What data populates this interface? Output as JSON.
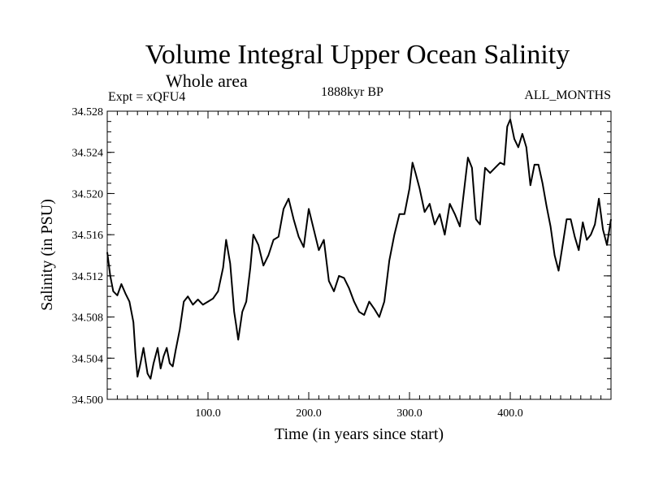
{
  "header": {
    "title": "Volume Integral Upper Ocean Salinity",
    "subtitle": "Whole area",
    "experiment": "Expt = xQFU4",
    "period": "1888kyr BP",
    "months": "ALL_MONTHS"
  },
  "chart_data": {
    "type": "line",
    "title": "Volume Integral Upper Ocean Salinity",
    "subtitle": "Whole area",
    "xlabel": "Time (in years since start)",
    "ylabel": "Salinity (in PSU)",
    "xlim": [
      0,
      500
    ],
    "ylim": [
      34.5,
      34.528
    ],
    "x_ticks": [
      100,
      200,
      300,
      400
    ],
    "x_tick_labels": [
      "100.0",
      "200.0",
      "300.0",
      "400.0"
    ],
    "y_ticks": [
      34.5,
      34.504,
      34.508,
      34.512,
      34.516,
      34.52,
      34.524,
      34.528
    ],
    "y_tick_labels": [
      "34.500",
      "34.504",
      "34.508",
      "34.512",
      "34.516",
      "34.520",
      "34.524",
      "34.528"
    ],
    "grid": false,
    "series": [
      {
        "name": "salinity",
        "color": "#000000",
        "x": [
          0,
          3,
          6,
          10,
          14,
          18,
          22,
          26,
          28,
          30,
          33,
          36,
          40,
          43,
          46,
          50,
          53,
          56,
          59,
          62,
          65,
          68,
          72,
          76,
          80,
          85,
          90,
          95,
          100,
          105,
          110,
          115,
          118,
          122,
          126,
          128,
          130,
          134,
          138,
          142,
          145,
          150,
          155,
          160,
          165,
          170,
          175,
          180,
          185,
          190,
          195,
          200,
          205,
          210,
          215,
          220,
          225,
          230,
          235,
          240,
          245,
          250,
          255,
          260,
          265,
          270,
          275,
          280,
          285,
          290,
          295,
          300,
          303,
          306,
          310,
          315,
          320,
          325,
          330,
          335,
          340,
          345,
          350,
          355,
          358,
          362,
          366,
          370,
          375,
          380,
          385,
          390,
          394,
          397,
          400,
          404,
          408,
          412,
          416,
          420,
          424,
          428,
          432,
          436,
          440,
          444,
          448,
          452,
          456,
          460,
          464,
          468,
          472,
          476,
          480,
          484,
          488,
          492,
          496,
          500
        ],
        "values": [
          34.5143,
          34.512,
          34.5105,
          34.5101,
          34.5112,
          34.5103,
          34.5095,
          34.5075,
          34.5045,
          34.5022,
          34.5035,
          34.505,
          34.5025,
          34.502,
          34.5035,
          34.505,
          34.503,
          34.5042,
          34.505,
          34.5035,
          34.5032,
          34.5048,
          34.5068,
          34.5095,
          34.51,
          34.5092,
          34.5097,
          34.5092,
          34.5095,
          34.5098,
          34.5105,
          34.5128,
          34.5155,
          34.5132,
          34.5085,
          34.5072,
          34.5058,
          34.5085,
          34.5095,
          34.5128,
          34.516,
          34.515,
          34.513,
          34.514,
          34.5155,
          34.5158,
          34.5185,
          34.5195,
          34.5175,
          34.5158,
          34.5148,
          34.5185,
          34.5165,
          34.5145,
          34.5155,
          34.5115,
          34.5105,
          34.512,
          34.5118,
          34.5108,
          34.5095,
          34.5085,
          34.5082,
          34.5095,
          34.5088,
          34.508,
          34.5095,
          34.5135,
          34.516,
          34.518,
          34.518,
          34.5205,
          34.523,
          34.522,
          34.5205,
          34.5182,
          34.519,
          34.517,
          34.518,
          34.516,
          34.519,
          34.518,
          34.5168,
          34.521,
          34.5235,
          34.5225,
          34.5175,
          34.517,
          34.5225,
          34.522,
          34.5225,
          34.523,
          34.5228,
          34.5265,
          34.5272,
          34.5253,
          34.5245,
          34.5258,
          34.5245,
          34.5208,
          34.5228,
          34.5228,
          34.521,
          34.5188,
          34.5168,
          34.514,
          34.5125,
          34.515,
          34.5175,
          34.5175,
          34.5158,
          34.5145,
          34.5172,
          34.5155,
          34.516,
          34.517,
          34.5195,
          34.5165,
          34.515,
          34.5175
        ]
      }
    ]
  }
}
